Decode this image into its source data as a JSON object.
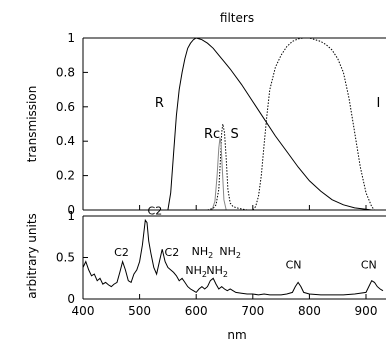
{
  "chart_data": [
    {
      "type": "line",
      "title": "filters",
      "xlabel": "",
      "ylabel": "transmission",
      "xlim": [
        400,
        930
      ],
      "ylim": [
        0,
        1.0
      ],
      "yticks": [
        0,
        0.2,
        0.4,
        0.6,
        0.8,
        1
      ],
      "ytick_labels": [
        "0",
        "0.2",
        "0.4",
        "0.6",
        "0.8",
        "1"
      ],
      "grid": false,
      "series": [
        {
          "name": "R",
          "style": "solid",
          "color": "#000000",
          "x": [
            550,
            555,
            560,
            565,
            570,
            575,
            580,
            585,
            590,
            595,
            600,
            610,
            620,
            630,
            640,
            650,
            660,
            680,
            700,
            720,
            740,
            760,
            780,
            800,
            820,
            840,
            860,
            880,
            900,
            910
          ],
          "y": [
            0,
            0.1,
            0.33,
            0.55,
            0.7,
            0.8,
            0.88,
            0.94,
            0.97,
            0.99,
            1.0,
            0.99,
            0.97,
            0.94,
            0.9,
            0.86,
            0.82,
            0.73,
            0.63,
            0.53,
            0.43,
            0.34,
            0.25,
            0.17,
            0.11,
            0.06,
            0.03,
            0.012,
            0.004,
            0
          ]
        },
        {
          "name": "S",
          "style": "dotted",
          "color": "#000000",
          "x": [
            620,
            630,
            635,
            640,
            643,
            645,
            647,
            650,
            653,
            656,
            660,
            665,
            675,
            690
          ],
          "y": [
            0,
            0.01,
            0.03,
            0.12,
            0.3,
            0.45,
            0.5,
            0.45,
            0.3,
            0.12,
            0.04,
            0.02,
            0.01,
            0
          ]
        },
        {
          "name": "Rc",
          "style": "solid-gray",
          "color": "#888888",
          "x": [
            628,
            633,
            637,
            640,
            642,
            644,
            646,
            649,
            653
          ],
          "y": [
            0,
            0.05,
            0.2,
            0.36,
            0.42,
            0.38,
            0.25,
            0.06,
            0
          ]
        },
        {
          "name": "I",
          "style": "dotted",
          "color": "#000000",
          "x": [
            700,
            705,
            710,
            715,
            720,
            725,
            730,
            740,
            750,
            760,
            770,
            780,
            790,
            800,
            810,
            820,
            830,
            840,
            850,
            860,
            870,
            880,
            890,
            900,
            910,
            915
          ],
          "y": [
            0,
            0.02,
            0.08,
            0.2,
            0.38,
            0.55,
            0.7,
            0.83,
            0.9,
            0.95,
            0.98,
            0.995,
            1.0,
            1.0,
            0.99,
            0.98,
            0.96,
            0.93,
            0.88,
            0.8,
            0.65,
            0.45,
            0.25,
            0.1,
            0.02,
            0
          ]
        }
      ],
      "curve_labels": [
        {
          "text": "R",
          "x": 535,
          "y": 0.6
        },
        {
          "text": "Rc",
          "x": 628,
          "y": 0.42
        },
        {
          "text": "S",
          "x": 668,
          "y": 0.42
        },
        {
          "text": "I",
          "x": 922,
          "y": 0.6
        }
      ]
    },
    {
      "type": "line",
      "title": "",
      "xlabel": "nm",
      "ylabel": "arbitrary units",
      "xlim": [
        400,
        930
      ],
      "ylim": [
        0,
        1.0
      ],
      "xticks": [
        400,
        500,
        600,
        700,
        800,
        900
      ],
      "xtick_labels": [
        "400",
        "500",
        "600",
        "700",
        "800",
        "900"
      ],
      "yticks": [
        0,
        0.5,
        1
      ],
      "ytick_labels": [
        "0",
        "0.5",
        "1"
      ],
      "grid": false,
      "series": [
        {
          "name": "",
          "style": "solid",
          "color": "#000000",
          "x": [
            400,
            405,
            410,
            415,
            420,
            425,
            430,
            435,
            440,
            445,
            450,
            455,
            460,
            465,
            470,
            475,
            480,
            485,
            490,
            495,
            500,
            505,
            510,
            513,
            516,
            520,
            525,
            530,
            535,
            540,
            545,
            550,
            555,
            560,
            565,
            570,
            575,
            580,
            585,
            590,
            595,
            600,
            605,
            610,
            615,
            620,
            625,
            630,
            635,
            640,
            645,
            650,
            655,
            660,
            665,
            670,
            680,
            690,
            700,
            710,
            720,
            730,
            740,
            750,
            760,
            770,
            775,
            780,
            785,
            790,
            800,
            820,
            840,
            860,
            880,
            900,
            905,
            910,
            915,
            920,
            925,
            930
          ],
          "y": [
            0.38,
            0.45,
            0.35,
            0.28,
            0.3,
            0.22,
            0.25,
            0.18,
            0.2,
            0.17,
            0.15,
            0.18,
            0.2,
            0.32,
            0.45,
            0.35,
            0.22,
            0.2,
            0.3,
            0.35,
            0.45,
            0.65,
            0.95,
            0.92,
            0.7,
            0.55,
            0.38,
            0.3,
            0.45,
            0.6,
            0.45,
            0.38,
            0.35,
            0.32,
            0.28,
            0.22,
            0.25,
            0.2,
            0.15,
            0.12,
            0.1,
            0.08,
            0.12,
            0.15,
            0.12,
            0.15,
            0.22,
            0.25,
            0.18,
            0.12,
            0.15,
            0.12,
            0.1,
            0.12,
            0.1,
            0.08,
            0.07,
            0.06,
            0.06,
            0.05,
            0.06,
            0.05,
            0.05,
            0.05,
            0.06,
            0.08,
            0.15,
            0.2,
            0.15,
            0.08,
            0.06,
            0.05,
            0.05,
            0.05,
            0.06,
            0.08,
            0.15,
            0.22,
            0.2,
            0.15,
            0.12,
            0.1
          ]
        }
      ],
      "annotations": [
        {
          "text": "C2",
          "x": 468,
          "y": 0.52,
          "sub": ""
        },
        {
          "text": "C2",
          "x": 527,
          "y": 1.02,
          "sub": ""
        },
        {
          "text": "C2",
          "x": 557,
          "y": 0.52,
          "sub": ""
        },
        {
          "text": "NH",
          "x": 611,
          "y": 0.53,
          "sub": "2"
        },
        {
          "text": "NH",
          "x": 660,
          "y": 0.53,
          "sub": "2"
        },
        {
          "text": "NH",
          "x": 600,
          "y": 0.3,
          "sub": "2"
        },
        {
          "text": "NH",
          "x": 637,
          "y": 0.3,
          "sub": "2"
        },
        {
          "text": "CN",
          "x": 772,
          "y": 0.37,
          "sub": ""
        },
        {
          "text": "CN",
          "x": 905,
          "y": 0.37,
          "sub": ""
        }
      ]
    }
  ]
}
